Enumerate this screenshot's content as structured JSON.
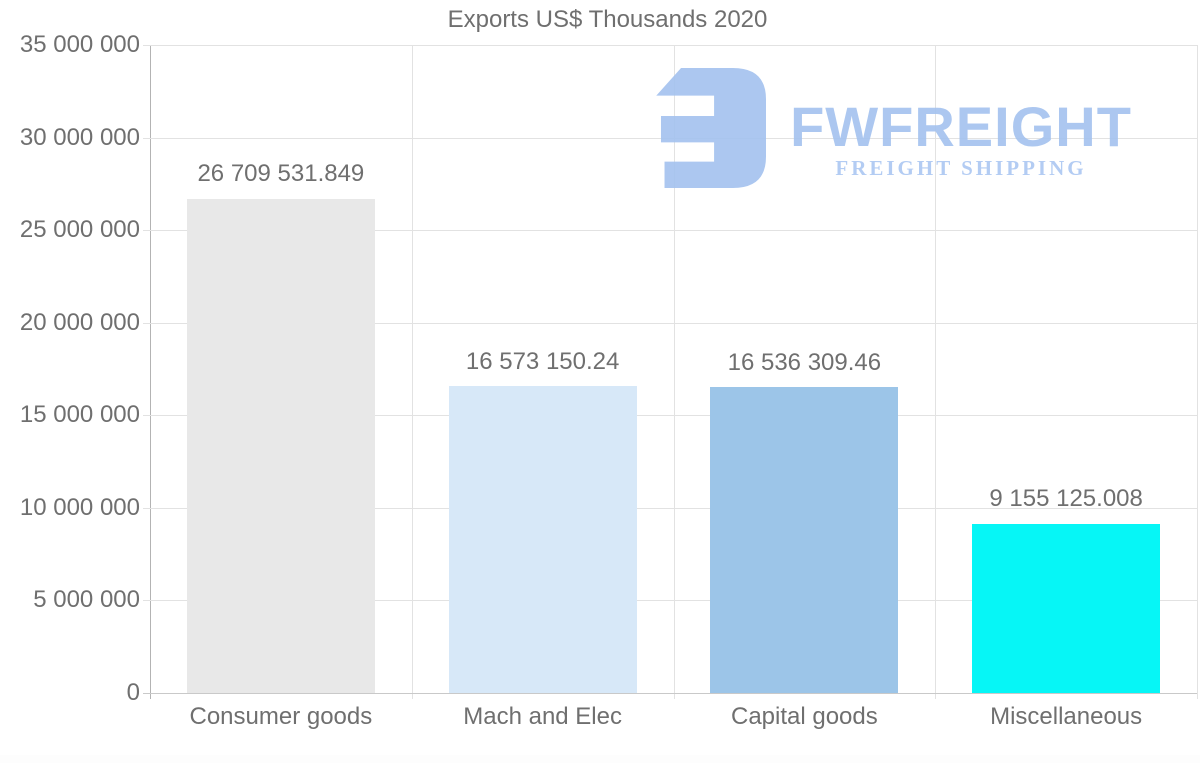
{
  "chart_data": {
    "type": "bar",
    "title": "Exports US$ Thousands 2020",
    "categories": [
      "Consumer goods",
      "Mach and Elec",
      "Capital goods",
      "Miscellaneous"
    ],
    "values": [
      26709531.849,
      16573150.24,
      16536309.46,
      9155125.008
    ],
    "value_labels": [
      "26 709 531.849",
      "16 573 150.24",
      "16 536 309.46",
      "9 155 125.008"
    ],
    "bar_colors": [
      "#e8e8e8",
      "#d7e8f8",
      "#9cc5e8",
      "#06f6f6"
    ],
    "xlabel": "",
    "ylabel": "",
    "ylim": [
      0,
      35000000
    ],
    "y_ticks": [
      0,
      5000000,
      10000000,
      15000000,
      20000000,
      25000000,
      30000000,
      35000000
    ],
    "y_tick_labels": [
      "0",
      "5 000 000",
      "10 000 000",
      "15 000 000",
      "20 000 000",
      "25 000 000",
      "30 000 000",
      "35 000 000"
    ],
    "grid": "horizontal and vertical light-gray gridlines",
    "legend_position": "none"
  },
  "watermark": {
    "brand": "FWFREIGHT",
    "tagline": "FREIGHT SHIPPING",
    "logo_color": "#a5c3ef"
  },
  "colors": {
    "background": "#ffffff",
    "text": "#6f6f6f",
    "gridline": "#e2e2e2",
    "axis_line": "#b3b3b3"
  }
}
